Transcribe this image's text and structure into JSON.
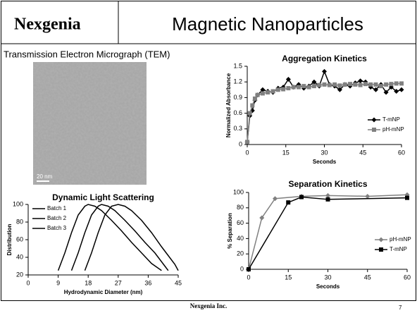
{
  "header": {
    "brand": "Nexgenia",
    "title": "Magnetic Nanoparticles"
  },
  "tem": {
    "caption": "Transmission Electron Micrograph (TEM)",
    "scale_label": "20 nm"
  },
  "footer": {
    "company": "Nexgenia Inc.",
    "page": "7"
  },
  "chart_data": [
    {
      "type": "line",
      "title": "Aggregation Kinetics",
      "x_label": "Seconds",
      "y_label": "Normalized Absorbance",
      "x": [
        0,
        1,
        2,
        3,
        4,
        6,
        8,
        10,
        12,
        14,
        16,
        18,
        20,
        22,
        24,
        26,
        28,
        30,
        32,
        34,
        36,
        38,
        40,
        42,
        44,
        46,
        48,
        50,
        52,
        54,
        56,
        58,
        60
      ],
      "series": [
        {
          "name": "T-mNP",
          "color": "#000000",
          "marker": "diamond",
          "values": [
            0.05,
            0.55,
            0.65,
            0.85,
            0.95,
            1.05,
            1.02,
            1.0,
            1.08,
            1.1,
            1.25,
            1.1,
            1.15,
            1.08,
            1.12,
            1.2,
            1.12,
            1.4,
            1.15,
            1.12,
            1.05,
            1.15,
            1.12,
            1.18,
            1.22,
            1.2,
            1.1,
            1.05,
            1.15,
            1.0,
            1.1,
            1.02,
            1.05
          ]
        },
        {
          "name": "pH-mNP",
          "color": "#808080",
          "marker": "square",
          "values": [
            0.05,
            0.6,
            0.75,
            0.88,
            0.95,
            0.98,
            1.0,
            1.02,
            1.05,
            1.06,
            1.08,
            1.1,
            1.1,
            1.12,
            1.1,
            1.12,
            1.14,
            1.15,
            1.14,
            1.15,
            1.13,
            1.15,
            1.16,
            1.15,
            1.14,
            1.16,
            1.15,
            1.15,
            1.12,
            1.15,
            1.16,
            1.17,
            1.17
          ]
        }
      ],
      "xlim": [
        0,
        60
      ],
      "xticks": [
        0,
        15,
        30,
        45,
        60
      ],
      "ylim": [
        0,
        1.5
      ],
      "yticks": [
        0,
        0.3,
        0.6,
        0.9,
        1.2,
        1.5
      ],
      "legend": "right"
    },
    {
      "type": "line",
      "title": "Dynamic Light Scattering",
      "x_label": "Hydrodynamic Diameter (nm)",
      "y_label": "Distribution",
      "series": [
        {
          "name": "Batch 1",
          "color": "#000000",
          "x": [
            9,
            11,
            13,
            15,
            17,
            18,
            20,
            22,
            25,
            28,
            31,
            34,
            37,
            40
          ],
          "values": [
            25,
            45,
            68,
            88,
            98,
            100,
            98,
            93,
            82,
            70,
            57,
            45,
            33,
            25
          ]
        },
        {
          "name": "Batch 2",
          "color": "#000000",
          "x": [
            13,
            15,
            17,
            19,
            21,
            22,
            24,
            26,
            29,
            32,
            35,
            38,
            41,
            42
          ],
          "values": [
            25,
            45,
            68,
            88,
            98,
            100,
            98,
            93,
            82,
            70,
            57,
            45,
            30,
            25
          ]
        },
        {
          "name": "Batch 3",
          "color": "#000000",
          "x": [
            17,
            19,
            21,
            23,
            25,
            27,
            29,
            31,
            34,
            37,
            40,
            42,
            44,
            45
          ],
          "values": [
            25,
            45,
            68,
            88,
            98,
            100,
            98,
            93,
            82,
            68,
            52,
            42,
            32,
            25
          ]
        }
      ],
      "xlim": [
        0,
        45
      ],
      "xticks": [
        0,
        9,
        18,
        27,
        36,
        45
      ],
      "ylim": [
        20,
        100
      ],
      "yticks": [
        20,
        40,
        60,
        80,
        100
      ],
      "legend": "upper left"
    },
    {
      "type": "line",
      "title": "Separation Kinetics",
      "x_label": "Seconds",
      "y_label": "% Separation",
      "series": [
        {
          "name": "pH-mNP",
          "color": "#808080",
          "marker": "diamond",
          "x": [
            0,
            5,
            10,
            20,
            30,
            45,
            60
          ],
          "values": [
            0,
            67,
            92,
            95,
            96,
            95,
            97
          ]
        },
        {
          "name": "T-mNP",
          "color": "#000000",
          "marker": "square",
          "x": [
            0,
            15,
            20,
            30,
            60
          ],
          "values": [
            0,
            87,
            94,
            91,
            93
          ]
        }
      ],
      "xlim": [
        0,
        60
      ],
      "xticks": [
        0,
        15,
        30,
        45,
        60
      ],
      "ylim": [
        0,
        100
      ],
      "yticks": [
        0,
        20,
        40,
        60,
        80,
        100
      ],
      "legend": "right"
    }
  ]
}
